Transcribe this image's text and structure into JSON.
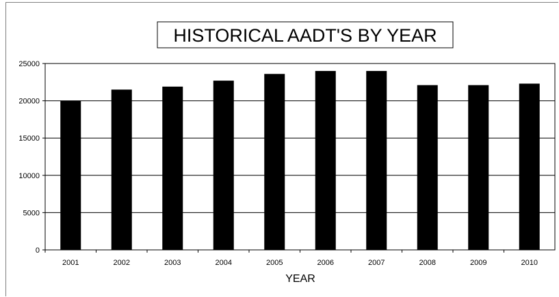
{
  "chart_data": {
    "type": "bar",
    "title": "HISTORICAL AADT'S BY YEAR",
    "xlabel": "YEAR",
    "ylabel": "",
    "categories": [
      "2001",
      "2002",
      "2003",
      "2004",
      "2005",
      "2006",
      "2007",
      "2008",
      "2009",
      "2010"
    ],
    "values": [
      20000,
      21500,
      21900,
      22700,
      23600,
      24000,
      24000,
      22100,
      22100,
      22300
    ],
    "ylim": [
      0,
      25000
    ],
    "yticks": [
      "0",
      "5000",
      "10000",
      "15000",
      "20000",
      "25000"
    ],
    "grid": true,
    "legend": "none",
    "bar_color": "#000000"
  }
}
